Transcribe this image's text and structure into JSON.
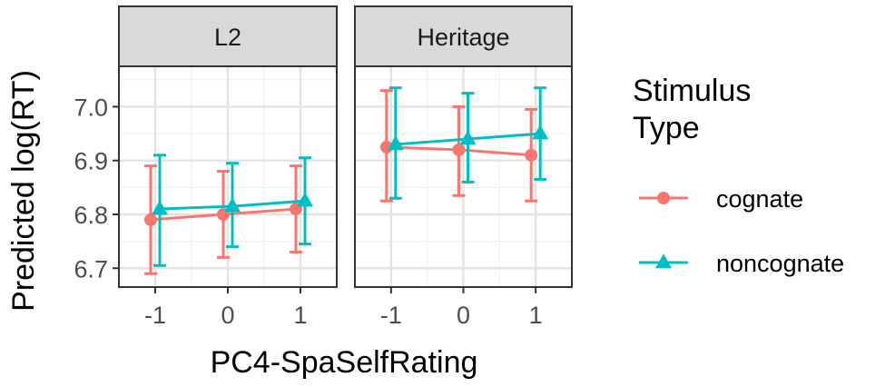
{
  "chart_data": {
    "type": "line",
    "xlabel": "PC4-SpaSelfRating",
    "ylabel": "Predicted log(RT)",
    "x_ticks": [
      -1,
      0,
      1
    ],
    "x_tick_labels": [
      "-1",
      "0",
      "1"
    ],
    "xlim": [
      -1.5,
      1.5
    ],
    "y_ticks": [
      6.7,
      6.8,
      6.9,
      7.0
    ],
    "y_tick_labels": [
      "6.7",
      "6.8",
      "6.9",
      "7.0"
    ],
    "ylim": [
      6.665,
      7.075
    ],
    "grid": true,
    "legend": {
      "title": "Stimulus\nType",
      "title_lines": [
        "Stimulus",
        "Type"
      ],
      "position": "right"
    },
    "series": [
      {
        "name": "cognate",
        "color": "#f8766d",
        "marker": "circle"
      },
      {
        "name": "noncognate",
        "color": "#00bfc4",
        "marker": "triangle"
      }
    ],
    "panels": [
      {
        "label": "L2",
        "data": [
          {
            "series": "cognate",
            "x": [
              -1,
              0,
              1
            ],
            "y": [
              6.79,
              6.8,
              6.81
            ],
            "lower": [
              6.69,
              6.72,
              6.73
            ],
            "upper": [
              6.89,
              6.88,
              6.89
            ]
          },
          {
            "series": "noncognate",
            "x": [
              -1,
              0,
              1
            ],
            "y": [
              6.81,
              6.815,
              6.825
            ],
            "lower": [
              6.705,
              6.74,
              6.745
            ],
            "upper": [
              6.91,
              6.895,
              6.905
            ]
          }
        ]
      },
      {
        "label": "Heritage",
        "data": [
          {
            "series": "cognate",
            "x": [
              -1,
              0,
              1
            ],
            "y": [
              6.925,
              6.92,
              6.91
            ],
            "lower": [
              6.825,
              6.835,
              6.825
            ],
            "upper": [
              7.03,
              7.0,
              6.995
            ]
          },
          {
            "series": "noncognate",
            "x": [
              -1,
              0,
              1
            ],
            "y": [
              6.93,
              6.94,
              6.95
            ],
            "lower": [
              6.83,
              6.86,
              6.865
            ],
            "upper": [
              7.035,
              7.025,
              7.035
            ]
          }
        ]
      }
    ]
  }
}
